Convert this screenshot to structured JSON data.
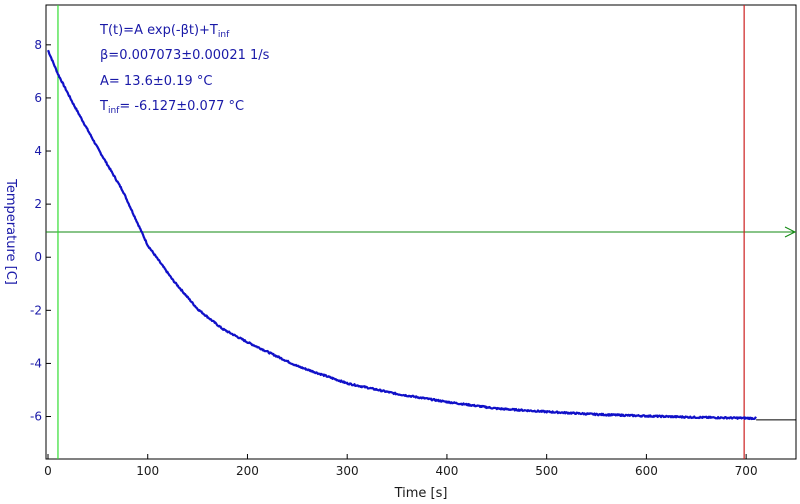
{
  "chart_data": {
    "type": "line",
    "xlabel": "Time [s]",
    "ylabel": "Temperature [C]",
    "xlim": [
      -2,
      750
    ],
    "ylim": [
      -7.6,
      9.5
    ],
    "x_ticks": [
      0,
      100,
      200,
      300,
      400,
      500,
      600,
      700
    ],
    "y_ticks": [
      -6,
      -4,
      -2,
      0,
      2,
      4,
      6,
      8
    ],
    "grid": false,
    "legend": "none",
    "fit": {
      "model": "T(t)=A exp(-βt)+T",
      "model_sub": "inf",
      "beta_text": "β=0.007073±0.00021 1/s",
      "a_text": "A= 13.6±0.19 °C",
      "tinf_prefix": "T",
      "tinf_sub": "inf",
      "tinf_value": "= -6.127±0.077 °C",
      "A": 13.6,
      "beta": 0.007073,
      "T_inf": -6.127
    },
    "series": [
      {
        "x": [
          0,
          10,
          25,
          50,
          75,
          100,
          125,
          150,
          175,
          200,
          250,
          300,
          350,
          400,
          450,
          500,
          550,
          600,
          650,
          700,
          710
        ],
        "y": [
          7.8,
          6.9,
          5.8,
          4.1,
          2.5,
          0.45,
          -0.85,
          -1.95,
          -2.7,
          -3.2,
          -4.1,
          -4.75,
          -5.15,
          -5.45,
          -5.7,
          -5.82,
          -5.92,
          -5.98,
          -6.03,
          -6.06,
          -6.07
        ]
      }
    ],
    "cursor_green_x": 10,
    "cursor_red_x": 698,
    "baseline_y": 0.95,
    "asymptote_y": -6.127,
    "colors": {
      "data": "#1010c8",
      "fit_text": "#1a1aa8",
      "axis_labels": "#1a1aa8",
      "green_cursor": "#33dd33",
      "red_cursor": "#cc2020",
      "baseline_arrow": "#118811",
      "asymptote": "#000000"
    }
  }
}
